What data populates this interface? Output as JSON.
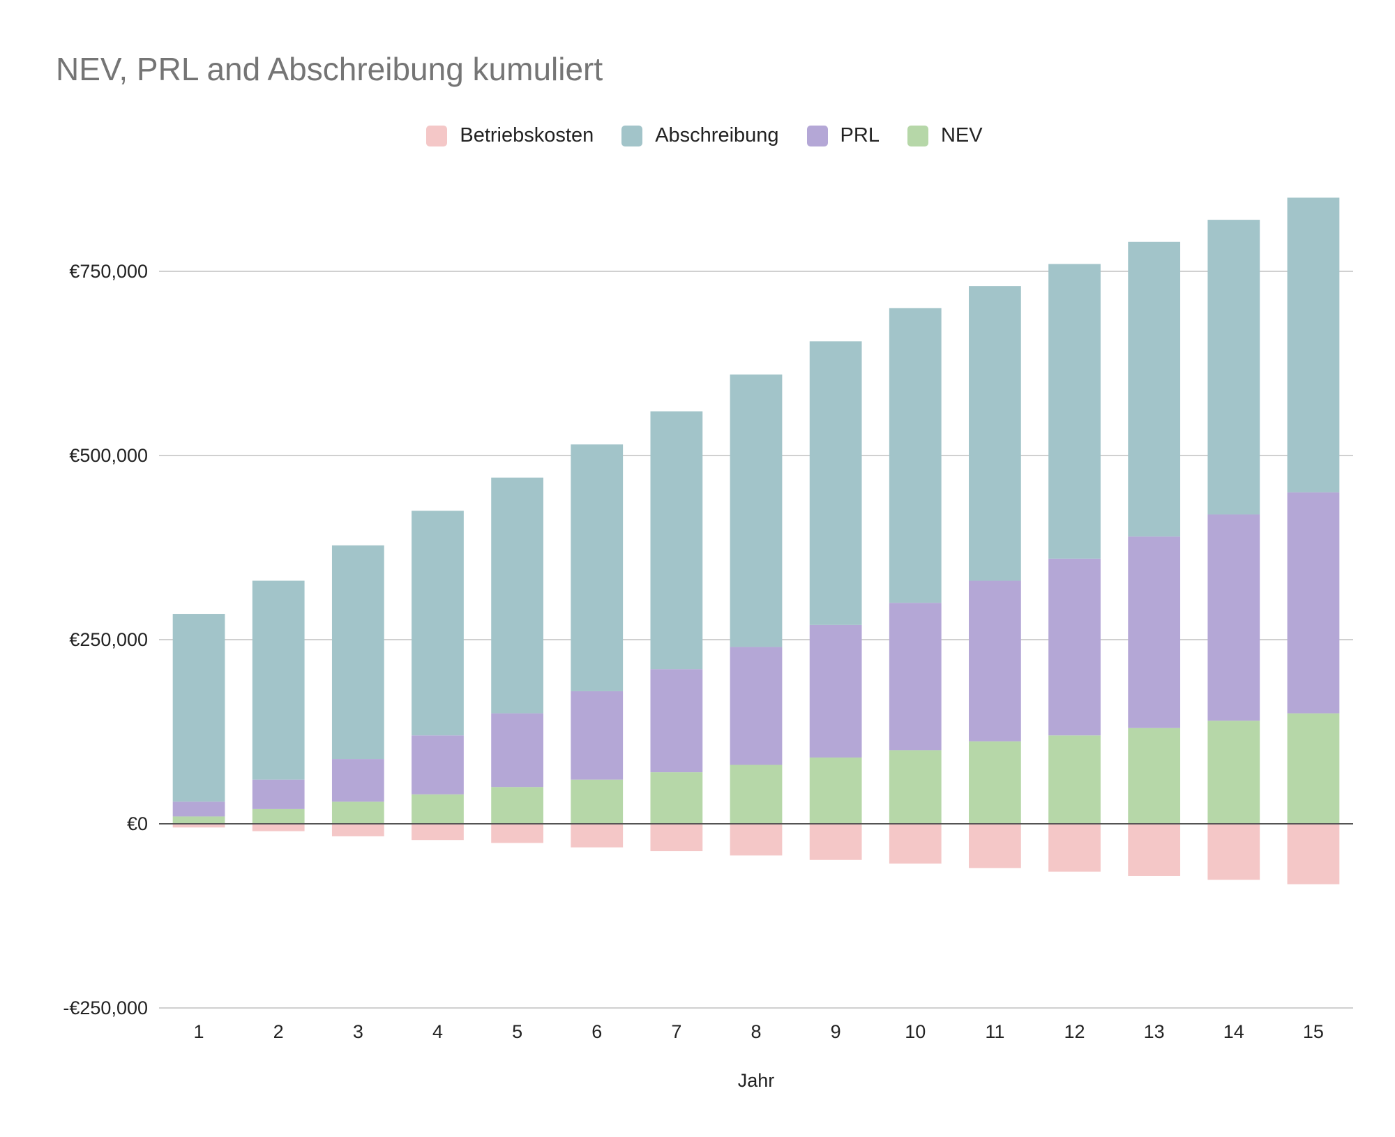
{
  "chart_data": {
    "type": "bar",
    "stacked": true,
    "title": "NEV, PRL and Abschreibung kumuliert",
    "xlabel": "Jahr",
    "ylabel": "",
    "categories": [
      "1",
      "2",
      "3",
      "4",
      "5",
      "6",
      "7",
      "8",
      "9",
      "10",
      "11",
      "12",
      "13",
      "14",
      "15"
    ],
    "ylim": [
      -250000,
      850000
    ],
    "yticks": [
      {
        "value": 750000,
        "label": "€750,000"
      },
      {
        "value": 500000,
        "label": "€500,000"
      },
      {
        "value": 250000,
        "label": "€250,000"
      },
      {
        "value": 0,
        "label": "€0"
      },
      {
        "value": -250000,
        "label": "-€250,000"
      }
    ],
    "grid": true,
    "legend_position": "top",
    "series": [
      {
        "name": "Betriebskosten",
        "color": "#f4c7c7",
        "values": [
          -5000,
          -10000,
          -17000,
          -22000,
          -26000,
          -32000,
          -37000,
          -43000,
          -49000,
          -54000,
          -60000,
          -65000,
          -71000,
          -76000,
          -82000
        ]
      },
      {
        "name": "Abschreibung",
        "color": "#a2c4c9",
        "values": [
          255000,
          270000,
          290000,
          305000,
          320000,
          335000,
          350000,
          370000,
          385000,
          400000,
          400000,
          400000,
          400000,
          400000,
          400000
        ]
      },
      {
        "name": "PRL",
        "color": "#b4a7d6",
        "values": [
          20000,
          40000,
          58000,
          80000,
          100000,
          120000,
          140000,
          160000,
          180000,
          200000,
          218000,
          240000,
          260000,
          280000,
          300000
        ]
      },
      {
        "name": "NEV",
        "color": "#b6d7a8",
        "values": [
          10000,
          20000,
          30000,
          40000,
          50000,
          60000,
          70000,
          80000,
          90000,
          100000,
          112000,
          120000,
          130000,
          140000,
          150000
        ]
      }
    ],
    "stack_order": [
      "NEV",
      "PRL",
      "Abschreibung"
    ],
    "legend_order": [
      "Betriebskosten",
      "Abschreibung",
      "PRL",
      "NEV"
    ]
  }
}
